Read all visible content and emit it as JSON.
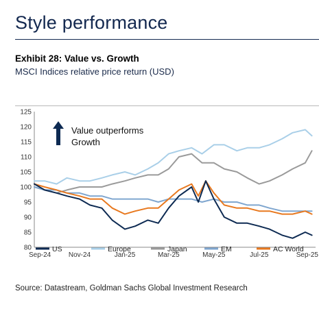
{
  "header": {
    "title": "Style performance",
    "exhibit_title": "Exhibit 28: Value vs. Growth",
    "exhibit_subtitle": "MSCI Indices relative price return (USD)"
  },
  "footer": {
    "source": "Source: Datastream, Goldman Sachs Global Investment Research"
  },
  "chart_data": {
    "type": "line",
    "title": "",
    "xlabel": "",
    "ylabel": "",
    "ylim": [
      80,
      125
    ],
    "y_ticks": [
      80,
      85,
      90,
      95,
      100,
      105,
      110,
      115,
      120,
      125
    ],
    "x_ticks": [
      "Sep-24",
      "Nov-24",
      "Jan-25",
      "Mar-25",
      "May-25",
      "Jul-25",
      "Sep-25"
    ],
    "xlim": [
      "2024-09-01",
      "2025-09-15"
    ],
    "grid": false,
    "legend_position": "bottom",
    "annotation": {
      "line1": "Value outperforms",
      "line2": "Growth",
      "arrow": "up-arrow"
    },
    "series": [
      {
        "name": "US",
        "color": "#0d2a52",
        "x": [
          "2024-09-01",
          "2024-09-15",
          "2024-10-01",
          "2024-10-15",
          "2024-11-01",
          "2024-11-15",
          "2024-12-01",
          "2024-12-15",
          "2025-01-01",
          "2025-01-15",
          "2025-02-01",
          "2025-02-15",
          "2025-03-01",
          "2025-03-15",
          "2025-04-01",
          "2025-04-10",
          "2025-04-20",
          "2025-05-01",
          "2025-05-15",
          "2025-06-01",
          "2025-06-15",
          "2025-07-01",
          "2025-07-15",
          "2025-08-01",
          "2025-08-15",
          "2025-09-01",
          "2025-09-10"
        ],
        "values": [
          101,
          99,
          98,
          97,
          96,
          94,
          93,
          89,
          86,
          87,
          89,
          88,
          93,
          97,
          100,
          95,
          102,
          96,
          90,
          88,
          88,
          87,
          86,
          84,
          83,
          85,
          84
        ]
      },
      {
        "name": "Europe",
        "color": "#a9cfe8",
        "x": [
          "2024-09-01",
          "2024-09-15",
          "2024-10-01",
          "2024-10-15",
          "2024-11-01",
          "2024-11-15",
          "2024-12-01",
          "2024-12-15",
          "2025-01-01",
          "2025-01-15",
          "2025-02-01",
          "2025-02-15",
          "2025-03-01",
          "2025-03-15",
          "2025-04-01",
          "2025-04-15",
          "2025-05-01",
          "2025-05-15",
          "2025-06-01",
          "2025-06-15",
          "2025-07-01",
          "2025-07-15",
          "2025-08-01",
          "2025-08-15",
          "2025-09-01",
          "2025-09-10"
        ],
        "values": [
          102,
          102,
          101,
          103,
          102,
          102,
          103,
          104,
          105,
          104,
          106,
          108,
          111,
          112,
          113,
          111,
          114,
          114,
          112,
          113,
          113,
          114,
          116,
          118,
          119,
          117
        ]
      },
      {
        "name": "Japan",
        "color": "#9a9a9a",
        "x": [
          "2024-09-01",
          "2024-09-15",
          "2024-10-01",
          "2024-10-15",
          "2024-11-01",
          "2024-11-15",
          "2024-12-01",
          "2024-12-15",
          "2025-01-01",
          "2025-01-15",
          "2025-02-01",
          "2025-02-15",
          "2025-03-01",
          "2025-03-15",
          "2025-04-01",
          "2025-04-15",
          "2025-05-01",
          "2025-05-15",
          "2025-06-01",
          "2025-06-15",
          "2025-07-01",
          "2025-07-15",
          "2025-08-01",
          "2025-08-15",
          "2025-09-01",
          "2025-09-10"
        ],
        "values": [
          100,
          99,
          98,
          99,
          100,
          100,
          100,
          101,
          102,
          103,
          104,
          104,
          106,
          110,
          111,
          108,
          108,
          106,
          105,
          103,
          101,
          102,
          104,
          106,
          108,
          112
        ]
      },
      {
        "name": "EM",
        "color": "#7fa6cf",
        "x": [
          "2024-09-01",
          "2024-09-15",
          "2024-10-01",
          "2024-10-15",
          "2024-11-01",
          "2024-11-15",
          "2024-12-01",
          "2024-12-15",
          "2025-01-01",
          "2025-01-15",
          "2025-02-01",
          "2025-02-15",
          "2025-03-01",
          "2025-03-15",
          "2025-04-01",
          "2025-04-15",
          "2025-05-01",
          "2025-05-15",
          "2025-06-01",
          "2025-06-15",
          "2025-07-01",
          "2025-07-15",
          "2025-08-01",
          "2025-08-15",
          "2025-09-01",
          "2025-09-10"
        ],
        "values": [
          100,
          99,
          99,
          98,
          98,
          97,
          97,
          96,
          96,
          96,
          96,
          95,
          96,
          96,
          96,
          95,
          96,
          95,
          95,
          94,
          94,
          93,
          92,
          92,
          92,
          92
        ]
      },
      {
        "name": "AC World",
        "color": "#e8781e",
        "x": [
          "2024-09-01",
          "2024-09-15",
          "2024-10-01",
          "2024-10-15",
          "2024-11-01",
          "2024-11-15",
          "2024-12-01",
          "2024-12-15",
          "2025-01-01",
          "2025-01-15",
          "2025-02-01",
          "2025-02-15",
          "2025-03-01",
          "2025-03-15",
          "2025-04-01",
          "2025-04-10",
          "2025-04-20",
          "2025-05-01",
          "2025-05-15",
          "2025-06-01",
          "2025-06-15",
          "2025-07-01",
          "2025-07-15",
          "2025-08-01",
          "2025-08-15",
          "2025-09-01",
          "2025-09-10"
        ],
        "values": [
          101,
          100,
          99,
          98,
          97,
          96,
          96,
          93,
          91,
          92,
          93,
          93,
          96,
          99,
          101,
          97,
          102,
          98,
          94,
          93,
          93,
          92,
          92,
          91,
          91,
          92,
          91
        ]
      }
    ]
  }
}
